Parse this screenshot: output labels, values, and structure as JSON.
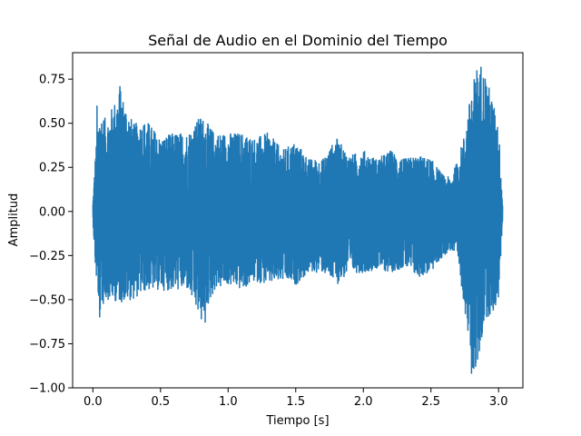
{
  "chart_data": {
    "type": "line",
    "title": "Señal de Audio en el Dominio del Tiempo",
    "xlabel": "Tiempo [s]",
    "ylabel": "Amplitud",
    "xlim": [
      -0.15,
      3.18
    ],
    "ylim": [
      -1.0,
      0.9
    ],
    "xticks": [
      0.0,
      0.5,
      1.0,
      1.5,
      2.0,
      2.5,
      3.0
    ],
    "xtick_labels": [
      "0.0",
      "0.5",
      "1.0",
      "1.5",
      "2.0",
      "2.5",
      "3.0"
    ],
    "yticks": [
      -1.0,
      -0.75,
      -0.5,
      -0.25,
      0.0,
      0.25,
      0.5,
      0.75
    ],
    "ytick_labels": [
      "−1.00",
      "−0.75",
      "−0.50",
      "−0.25",
      "0.00",
      "0.25",
      "0.50",
      "0.75"
    ],
    "grid": false,
    "line_color": "#1f77b4",
    "duration_s": 3.03,
    "envelope": {
      "t": [
        0.0,
        0.02,
        0.05,
        0.1,
        0.2,
        0.3,
        0.4,
        0.5,
        0.6,
        0.7,
        0.8,
        0.9,
        1.0,
        1.1,
        1.2,
        1.3,
        1.4,
        1.5,
        1.6,
        1.7,
        1.8,
        1.9,
        2.0,
        2.1,
        2.2,
        2.3,
        2.4,
        2.5,
        2.6,
        2.65,
        2.7,
        2.75,
        2.8,
        2.85,
        2.9,
        2.95,
        3.0,
        3.03
      ],
      "max": [
        0.05,
        0.35,
        0.58,
        0.52,
        0.7,
        0.5,
        0.52,
        0.42,
        0.45,
        0.45,
        0.55,
        0.45,
        0.45,
        0.45,
        0.42,
        0.45,
        0.35,
        0.4,
        0.3,
        0.3,
        0.42,
        0.32,
        0.35,
        0.3,
        0.35,
        0.3,
        0.32,
        0.3,
        0.2,
        0.2,
        0.3,
        0.45,
        0.7,
        0.8,
        0.8,
        0.65,
        0.5,
        0.05
      ],
      "min": [
        -0.05,
        -0.35,
        -0.58,
        -0.5,
        -0.52,
        -0.5,
        -0.45,
        -0.45,
        -0.45,
        -0.45,
        -0.63,
        -0.45,
        -0.42,
        -0.45,
        -0.4,
        -0.42,
        -0.4,
        -0.42,
        -0.35,
        -0.35,
        -0.42,
        -0.35,
        -0.35,
        -0.33,
        -0.35,
        -0.32,
        -0.38,
        -0.35,
        -0.25,
        -0.22,
        -0.3,
        -0.55,
        -0.92,
        -0.88,
        -0.6,
        -0.6,
        -0.5,
        -0.05
      ]
    },
    "peaks": [
      {
        "t": 0.2,
        "y": 0.71
      },
      {
        "t": 0.03,
        "y": 0.6
      },
      {
        "t": 0.05,
        "y": -0.6
      },
      {
        "t": 0.83,
        "y": -0.63
      },
      {
        "t": 2.8,
        "y": -0.92
      },
      {
        "t": 2.83,
        "y": -0.88
      },
      {
        "t": 2.84,
        "y": 0.8
      },
      {
        "t": 2.87,
        "y": 0.82
      },
      {
        "t": 2.82,
        "y": 0.75
      }
    ]
  }
}
